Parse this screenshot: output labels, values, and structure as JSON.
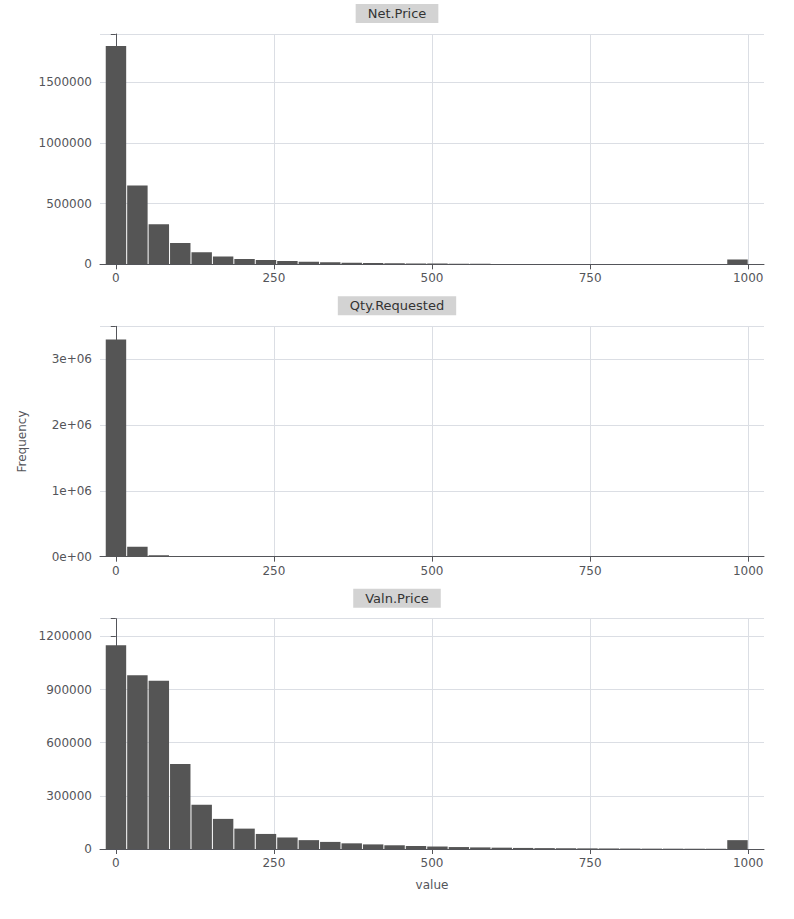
{
  "chart_data": [
    {
      "type": "histogram",
      "title": "Net.Price",
      "color": "#555555",
      "grid": true,
      "bins": [
        -16.7,
        17.19,
        51.08,
        84.97,
        118.86,
        152.75,
        186.64,
        220.53,
        254.42,
        288.31,
        322.2,
        356.09,
        389.98,
        423.87,
        457.76,
        491.65,
        525.54,
        559.43,
        593.32,
        627.21,
        661.1,
        694.99,
        728.88,
        762.77,
        796.66,
        830.55,
        864.44,
        898.33,
        932.22,
        966.11,
        1000
      ],
      "values": [
        1800000,
        650000,
        330000,
        175000,
        100000,
        65000,
        45000,
        35000,
        28000,
        22000,
        18000,
        14000,
        11000,
        9000,
        7500,
        6000,
        5000,
        4200,
        3500,
        3000,
        2500,
        2000,
        1800,
        1500,
        1300,
        1100,
        900,
        800,
        700,
        40000
      ],
      "xlim": [
        -25,
        1025
      ],
      "xticks": [
        0,
        250,
        500,
        750,
        1000
      ],
      "ylim": [
        0,
        1900000
      ],
      "yticks": [
        0,
        500000,
        1000000,
        1500000
      ]
    },
    {
      "type": "histogram",
      "title": "Qty.Requested",
      "color": "#555555",
      "grid": true,
      "ylabel": "Frequency",
      "bins": [
        -16.7,
        17.19,
        51.08,
        84.97,
        118.86,
        152.75,
        186.64,
        220.53,
        254.42,
        288.31,
        322.2,
        356.09,
        389.98,
        423.87,
        457.76,
        491.65,
        525.54,
        559.43,
        593.32,
        627.21,
        661.1,
        694.99,
        728.88,
        762.77,
        796.66,
        830.55,
        864.44,
        898.33,
        932.22,
        966.11,
        1000
      ],
      "values": [
        3300000,
        150000,
        20000,
        5000,
        2000,
        1000,
        600,
        400,
        300,
        200,
        150,
        100,
        80,
        60,
        50,
        40,
        30,
        25,
        20,
        18,
        15,
        12,
        10,
        9,
        8,
        7,
        6,
        5,
        5,
        5
      ],
      "xlim": [
        -25,
        1025
      ],
      "xticks": [
        0,
        250,
        500,
        750,
        1000
      ],
      "ylim": [
        0,
        3500000
      ],
      "yticks": [
        {
          "value": 0,
          "label": "0e+00"
        },
        {
          "value": 1000000,
          "label": "1e+06"
        },
        {
          "value": 2000000,
          "label": "2e+06"
        },
        {
          "value": 3000000,
          "label": "3e+06"
        }
      ]
    },
    {
      "type": "histogram",
      "title": "Valn.Price",
      "color": "#555555",
      "grid": true,
      "xlabel": "value",
      "bins": [
        -16.7,
        17.19,
        51.08,
        84.97,
        118.86,
        152.75,
        186.64,
        220.53,
        254.42,
        288.31,
        322.2,
        356.09,
        389.98,
        423.87,
        457.76,
        491.65,
        525.54,
        559.43,
        593.32,
        627.21,
        661.1,
        694.99,
        728.88,
        762.77,
        796.66,
        830.55,
        864.44,
        898.33,
        932.22,
        966.11,
        1000
      ],
      "values": [
        1150000,
        980000,
        950000,
        480000,
        250000,
        170000,
        115000,
        85000,
        65000,
        50000,
        40000,
        32000,
        26000,
        21000,
        17000,
        14000,
        11000,
        9000,
        7500,
        6000,
        5000,
        4200,
        3500,
        3000,
        2500,
        2000,
        1800,
        1500,
        1300,
        50000
      ],
      "xlim": [
        -25,
        1025
      ],
      "xticks": [
        0,
        250,
        500,
        750,
        1000
      ],
      "ylim": [
        0,
        1300000
      ],
      "yticks": [
        0,
        300000,
        600000,
        900000,
        1200000
      ]
    }
  ]
}
